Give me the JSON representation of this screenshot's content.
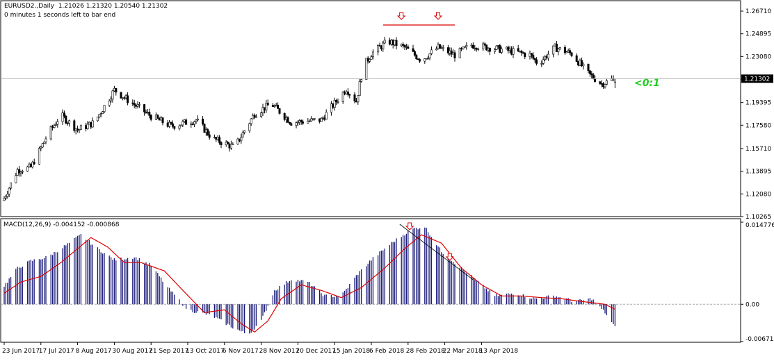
{
  "header": {
    "symbol_line": "EURUSD2.,Daily  1.21026 1.21320 1.20540 1.21302",
    "bar_timer": "0 minutes 1 seconds left to bar end"
  },
  "chart_data": [
    {
      "type": "candlestick",
      "panel": "price",
      "symbol": "EURUSD2.",
      "timeframe": "Daily",
      "last_bar": {
        "open": 1.21026,
        "high": 1.2132,
        "low": 1.2054,
        "close": 1.21302
      },
      "current_price": 1.21302,
      "current_price_label": "1.21302",
      "y_range": [
        1.10265,
        1.27265
      ],
      "y_ticks": [
        1.2671,
        1.24895,
        1.2308,
        1.21265,
        1.19395,
        1.1758,
        1.1571,
        1.13895,
        1.1208,
        1.10265
      ],
      "y_tick_labels": [
        "1.26710",
        "1.24895",
        "1.23080",
        "1.21265",
        "1.19395",
        "1.17580",
        "1.15710",
        "1.13895",
        "1.12080",
        "1.10265"
      ],
      "x_tick_labels": [
        "23 Jun 2017",
        "17 Jul 2017",
        "8 Aug 2017",
        "30 Aug 2017",
        "21 Sep 2017",
        "13 Oct 2017",
        "6 Nov 2017",
        "28 Nov 2017",
        "20 Dec 2017",
        "15 Jan 2018",
        "6 Feb 2018",
        "28 Feb 2018",
        "22 Mar 2018",
        "13 Apr 2018"
      ],
      "close_anchors": [
        [
          0,
          1.1175
        ],
        [
          8,
          1.14
        ],
        [
          16,
          1.142
        ],
        [
          26,
          1.168
        ],
        [
          34,
          1.184
        ],
        [
          44,
          1.172
        ],
        [
          54,
          1.178
        ],
        [
          66,
          1.204
        ],
        [
          75,
          1.195
        ],
        [
          88,
          1.183
        ],
        [
          100,
          1.175
        ],
        [
          115,
          1.18
        ],
        [
          125,
          1.165
        ],
        [
          138,
          1.158
        ],
        [
          150,
          1.185
        ],
        [
          160,
          1.193
        ],
        [
          172,
          1.178
        ],
        [
          190,
          1.18
        ],
        [
          205,
          1.205
        ],
        [
          211,
          1.195
        ],
        [
          215,
          1.222
        ],
        [
          220,
          1.233
        ],
        [
          230,
          1.243
        ],
        [
          240,
          1.238
        ],
        [
          250,
          1.228
        ],
        [
          260,
          1.238
        ],
        [
          270,
          1.232
        ],
        [
          280,
          1.24
        ],
        [
          300,
          1.236
        ],
        [
          315,
          1.232
        ],
        [
          320,
          1.225
        ],
        [
          330,
          1.238
        ],
        [
          340,
          1.233
        ],
        [
          350,
          1.217
        ],
        [
          358,
          1.209
        ],
        [
          366,
          1.213
        ]
      ],
      "annotation_text": "<0:1",
      "annotation_color": "#22cc22",
      "pattern_marker": "double-top",
      "marker_color": "#dd0000",
      "candle_color": "#000000"
    },
    {
      "type": "histogram+line",
      "panel": "indicator",
      "label": "MACD(12,26,9) -0.004152 -0.000868",
      "macd_current": -0.004152,
      "signal_current": -0.000868,
      "y_range": [
        -0.006714,
        0.014776
      ],
      "y_tick_labels": [
        "0.014776",
        "0.00",
        "-0.006714"
      ],
      "macd_anchors": [
        [
          0,
          0.0033
        ],
        [
          8,
          0.0065
        ],
        [
          16,
          0.0078
        ],
        [
          26,
          0.0085
        ],
        [
          38,
          0.0108
        ],
        [
          46,
          0.0125
        ],
        [
          56,
          0.01
        ],
        [
          66,
          0.008
        ],
        [
          78,
          0.0085
        ],
        [
          88,
          0.007
        ],
        [
          98,
          0.003
        ],
        [
          110,
          -0.001
        ],
        [
          124,
          -0.002
        ],
        [
          136,
          -0.004
        ],
        [
          146,
          -0.0055
        ],
        [
          154,
          -0.003
        ],
        [
          162,
          0.0025
        ],
        [
          172,
          0.0045
        ],
        [
          182,
          0.004
        ],
        [
          192,
          0.0015
        ],
        [
          202,
          0.0015
        ],
        [
          212,
          0.0055
        ],
        [
          220,
          0.008
        ],
        [
          232,
          0.011
        ],
        [
          244,
          0.0135
        ],
        [
          252,
          0.014
        ],
        [
          262,
          0.0095
        ],
        [
          272,
          0.007
        ],
        [
          284,
          0.004
        ],
        [
          294,
          0.0015
        ],
        [
          306,
          0.002
        ],
        [
          318,
          0.001
        ],
        [
          330,
          0.0015
        ],
        [
          342,
          0.0005
        ],
        [
          352,
          0.001
        ],
        [
          360,
          -0.0015
        ],
        [
          366,
          -0.0042
        ]
      ],
      "signal_anchors": [
        [
          0,
          0.002
        ],
        [
          10,
          0.004
        ],
        [
          22,
          0.005
        ],
        [
          34,
          0.0075
        ],
        [
          46,
          0.0105
        ],
        [
          52,
          0.012
        ],
        [
          62,
          0.0103
        ],
        [
          72,
          0.0075
        ],
        [
          82,
          0.0075
        ],
        [
          96,
          0.006
        ],
        [
          108,
          0.0022
        ],
        [
          120,
          -0.0015
        ],
        [
          132,
          -0.001
        ],
        [
          142,
          -0.0035
        ],
        [
          150,
          -0.005
        ],
        [
          158,
          -0.003
        ],
        [
          166,
          0.001
        ],
        [
          178,
          0.0035
        ],
        [
          190,
          0.0025
        ],
        [
          202,
          0.0012
        ],
        [
          214,
          0.003
        ],
        [
          228,
          0.0065
        ],
        [
          240,
          0.01
        ],
        [
          250,
          0.0125
        ],
        [
          262,
          0.011
        ],
        [
          274,
          0.0065
        ],
        [
          286,
          0.0035
        ],
        [
          298,
          0.0015
        ],
        [
          310,
          0.0015
        ],
        [
          322,
          0.0012
        ],
        [
          334,
          0.001
        ],
        [
          346,
          0.0005
        ],
        [
          360,
          0.0
        ],
        [
          366,
          -0.0009
        ]
      ],
      "histogram_color": "#1c1c7a",
      "signal_color": "#dd0000"
    }
  ]
}
